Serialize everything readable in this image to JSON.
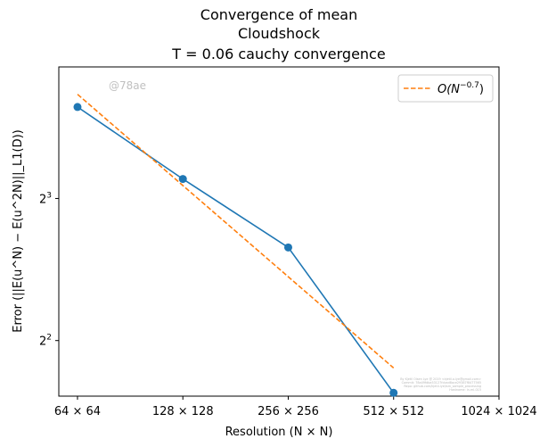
{
  "chart_data": {
    "type": "line",
    "title_lines": [
      "Convergence of mean",
      "Cloudshock",
      "T = 0.06 cauchy convergence"
    ],
    "xlabel": "Resolution (N × N)",
    "ylabel": "Error (||E(u^N) − E(u^2N)||_L1(D))",
    "x_scale": "log2",
    "y_scale": "log2",
    "x_ticks": [
      {
        "value": 64,
        "label": "64 × 64"
      },
      {
        "value": 128,
        "label": "128 × 128"
      },
      {
        "value": 256,
        "label": "256 × 256"
      },
      {
        "value": 512,
        "label": "512 × 512"
      },
      {
        "value": 1024,
        "label": "1024 × 1024"
      }
    ],
    "y_ticks": [
      {
        "value": 4,
        "base": "2",
        "exp": "2"
      },
      {
        "value": 8,
        "base": "2",
        "exp": "3"
      }
    ],
    "xlim": [
      56.6,
      1024
    ],
    "ylim": [
      3.05,
      15.2
    ],
    "series": [
      {
        "type": "line-marker",
        "color": "#1f77b4",
        "x": [
          64,
          128,
          256,
          512
        ],
        "y": [
          12.5,
          8.8,
          6.3,
          3.1
        ]
      },
      {
        "name": "O(N^-0.7)",
        "type": "dashed",
        "color": "#ff7f0e",
        "x": [
          64,
          512
        ],
        "y": [
          13.3,
          3.5
        ]
      }
    ],
    "legend": {
      "position": "top-right",
      "label_base": "O(N",
      "label_exp": "−0.7",
      "label_close": ")"
    },
    "annotations": {
      "hash": "@78ae",
      "footnote_lines": [
        "By Kjetil Olsen Lye @ 2019 <kjetil.o.lye@gmail.com>",
        "Commit: 78a49fdba53127fcbad8ace29387f8477565",
        "Repo: github.com/kjetil-lye/ism_sample_processing",
        "Hostname: ln-ml-015"
      ]
    }
  }
}
